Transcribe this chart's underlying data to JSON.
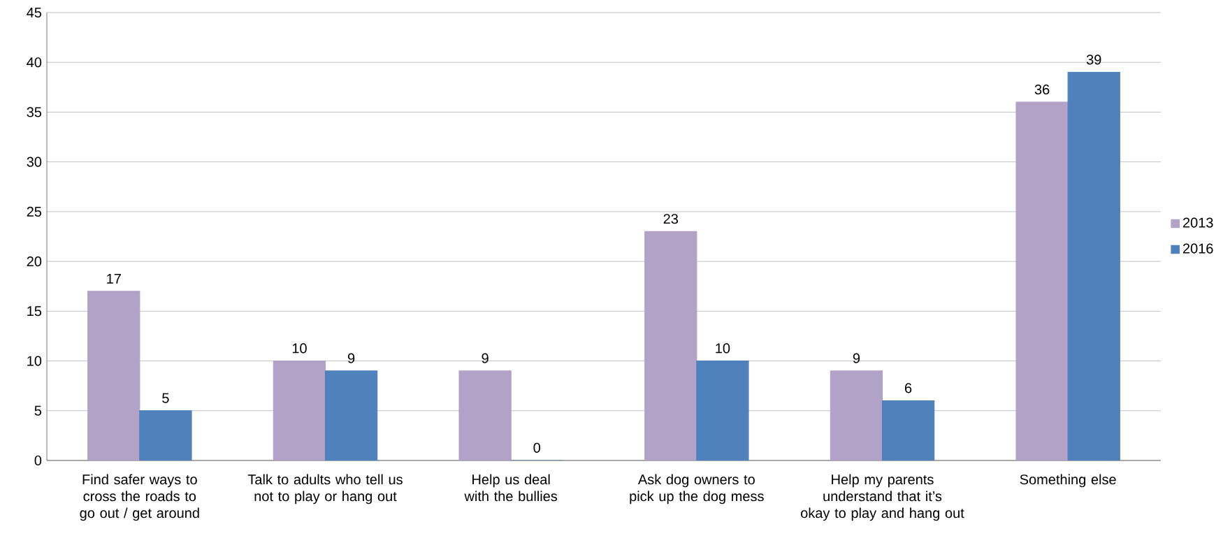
{
  "chart_data": {
    "type": "bar",
    "categories": [
      "Find safer ways to cross the roads to go out / get around",
      "Talk to adults who tell us not to play or hang out",
      "Help us deal with the bullies",
      "Ask dog owners to pick up the dog mess",
      "Help my parents understand that it’s okay to play and hang out",
      "Something else"
    ],
    "series": [
      {
        "name": "2013",
        "color": "#b3a2c7",
        "values": [
          17,
          10,
          9,
          23,
          9,
          36
        ]
      },
      {
        "name": "2016",
        "color": "#4f81bd",
        "values": [
          5,
          9,
          0,
          10,
          6,
          39
        ]
      }
    ],
    "ylim": [
      0,
      45
    ],
    "yticks": [
      0,
      5,
      10,
      15,
      20,
      25,
      30,
      35,
      40,
      45
    ],
    "grid": "y",
    "legend": "right",
    "data_labels": true
  }
}
